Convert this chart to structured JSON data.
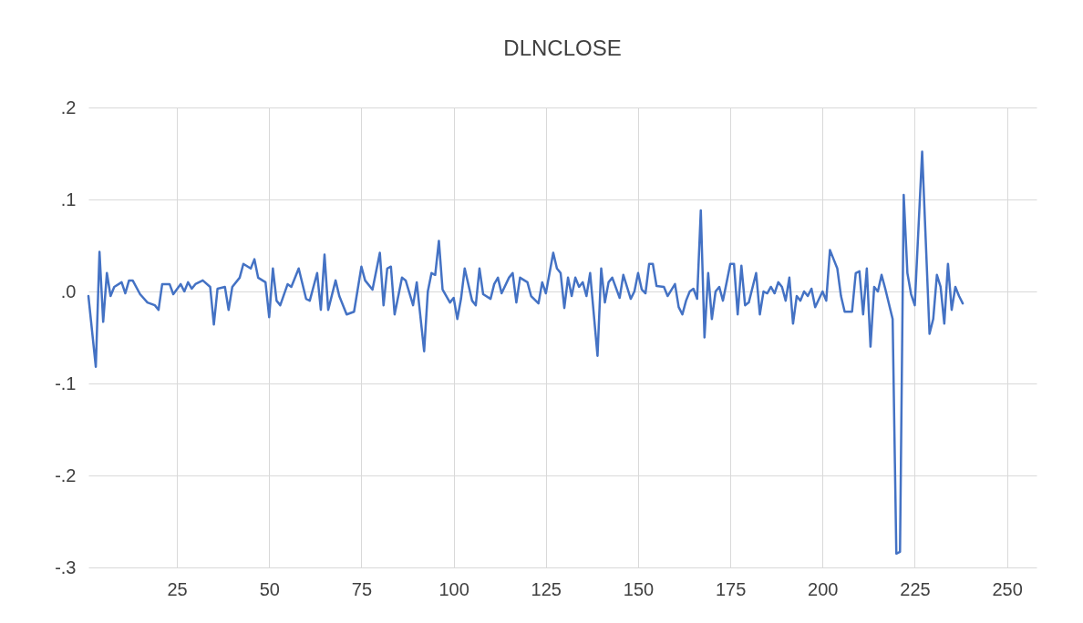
{
  "chart_data": {
    "type": "line",
    "title": "DLNCLOSE",
    "x": [
      1,
      3,
      4,
      5,
      6,
      7,
      8,
      10,
      11,
      12,
      13,
      15,
      17,
      19,
      20,
      21,
      23,
      24,
      26,
      27,
      28,
      29,
      30,
      32,
      34,
      35,
      36,
      38,
      39,
      40,
      42,
      43,
      45,
      46,
      47,
      49,
      50,
      51,
      52,
      53,
      55,
      56,
      58,
      60,
      61,
      63,
      64,
      65,
      66,
      68,
      69,
      71,
      73,
      75,
      76,
      78,
      80,
      81,
      82,
      83,
      84,
      86,
      87,
      89,
      90,
      92,
      93,
      94,
      95,
      96,
      97,
      99,
      100,
      101,
      102,
      103,
      105,
      106,
      107,
      108,
      110,
      111,
      112,
      113,
      115,
      116,
      117,
      118,
      120,
      121,
      123,
      124,
      125,
      127,
      128,
      129,
      130,
      131,
      132,
      133,
      134,
      135,
      136,
      137,
      139,
      140,
      141,
      142,
      143,
      145,
      146,
      148,
      149,
      150,
      151,
      152,
      153,
      154,
      155,
      157,
      158,
      160,
      161,
      162,
      163,
      164,
      165,
      166,
      167,
      168,
      169,
      170,
      171,
      172,
      173,
      174,
      175,
      176,
      177,
      178,
      179,
      180,
      182,
      183,
      184,
      185,
      186,
      187,
      188,
      189,
      190,
      191,
      192,
      193,
      194,
      195,
      196,
      197,
      198,
      200,
      201,
      202,
      203,
      204,
      205,
      206,
      208,
      209,
      210,
      211,
      212,
      213,
      214,
      215,
      216,
      217,
      219,
      220,
      221,
      222,
      223,
      224,
      225,
      227,
      229,
      230,
      231,
      232,
      233,
      234,
      235,
      236,
      237,
      238
    ],
    "series": [
      {
        "color": "#4472c4",
        "values": [
          -0.005,
          -0.082,
          0.043,
          -0.033,
          0.02,
          -0.005,
          0.005,
          0.01,
          -0.002,
          0.012,
          0.012,
          -0.003,
          -0.012,
          -0.015,
          -0.02,
          0.008,
          0.008,
          -0.003,
          0.008,
          0,
          0.01,
          0.003,
          0.008,
          0.012,
          0.005,
          -0.036,
          0.003,
          0.005,
          -0.02,
          0.005,
          0.015,
          0.03,
          0.025,
          0.035,
          0.015,
          0.01,
          -0.028,
          0.025,
          -0.01,
          -0.015,
          0.008,
          0.005,
          0.025,
          -0.008,
          -0.01,
          0.02,
          -0.02,
          0.04,
          -0.02,
          0.012,
          -0.005,
          -0.025,
          -0.022,
          0.027,
          0.012,
          0.002,
          0.042,
          -0.015,
          0.025,
          0.027,
          -0.025,
          0.015,
          0.012,
          -0.015,
          0.01,
          -0.065,
          0,
          0.02,
          0.018,
          0.055,
          0.002,
          -0.012,
          -0.007,
          -0.03,
          -0.008,
          0.025,
          -0.01,
          -0.015,
          0.025,
          -0.003,
          -0.008,
          0.008,
          0.015,
          -0.002,
          0.015,
          0.02,
          -0.012,
          0.015,
          0.01,
          -0.005,
          -0.013,
          0.01,
          -0.002,
          0.042,
          0.025,
          0.02,
          -0.018,
          0.015,
          -0.005,
          0.015,
          0.005,
          0.01,
          -0.005,
          0.02,
          -0.07,
          0.025,
          -0.012,
          0.01,
          0.015,
          -0.007,
          0.018,
          -0.008,
          0,
          0.02,
          0.002,
          -0.002,
          0.03,
          0.03,
          0.006,
          0.005,
          -0.005,
          0.008,
          -0.017,
          -0.025,
          -0.01,
          0,
          0.003,
          -0.008,
          0.088,
          -0.05,
          0.02,
          -0.03,
          0,
          0.005,
          -0.01,
          0.01,
          0.03,
          0.03,
          -0.025,
          0.028,
          -0.015,
          -0.012,
          0.02,
          -0.025,
          0,
          -0.002,
          0.005,
          -0.002,
          0.01,
          0.005,
          -0.01,
          0.015,
          -0.035,
          -0.005,
          -0.01,
          0,
          -0.005,
          0.003,
          -0.017,
          0,
          -0.01,
          0.045,
          0.035,
          0.025,
          -0.005,
          -0.022,
          -0.022,
          0.02,
          0.022,
          -0.025,
          0.025,
          -0.06,
          0.005,
          0,
          0.018,
          0.003,
          -0.03,
          -0.285,
          -0.283,
          0.105,
          0.02,
          -0.003,
          -0.015,
          0.152,
          -0.046,
          -0.03,
          0.018,
          0.005,
          -0.035,
          0.03,
          -0.02,
          0.005,
          -0.005,
          -0.013
        ]
      }
    ],
    "xlim": [
      1,
      258
    ],
    "xticks": [
      25,
      50,
      75,
      100,
      125,
      150,
      175,
      200,
      225,
      250
    ],
    "ylim": [
      -0.3,
      0.2
    ],
    "yticks": [
      {
        "value": -0.3,
        "label": "-.3"
      },
      {
        "value": -0.2,
        "label": "-.2"
      },
      {
        "value": -0.1,
        "label": "-.1"
      },
      {
        "value": 0,
        "label": ".0"
      },
      {
        "value": 0.1,
        "label": ".1"
      },
      {
        "value": 0.2,
        "label": ".2"
      }
    ],
    "grid": true,
    "legend": false
  }
}
